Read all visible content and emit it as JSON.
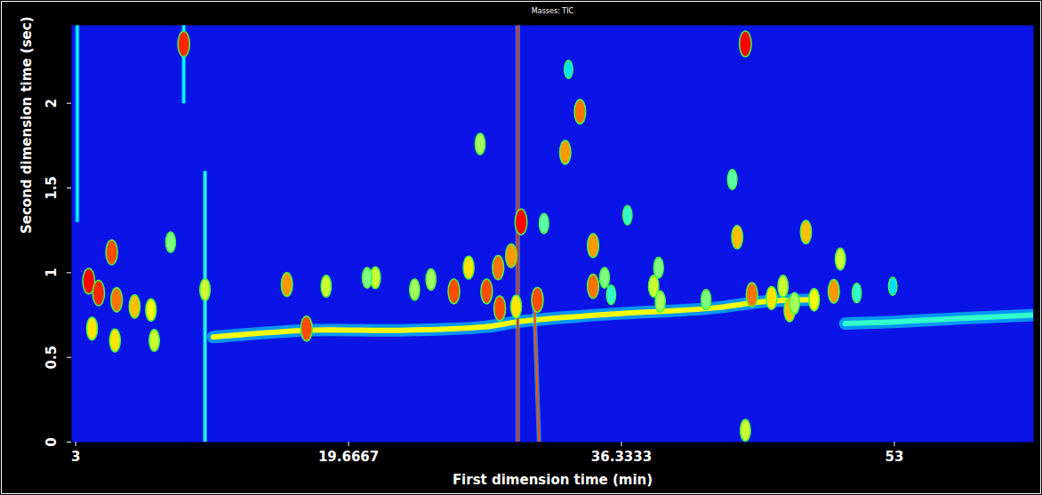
{
  "chart_data": {
    "type": "heatmap",
    "title": "Masses: TIC",
    "x_label": "First dimension time (min)",
    "y_label": "Second dimension time (sec)",
    "xlim": [
      2.75,
      61.5
    ],
    "ylim": [
      0,
      2.46
    ],
    "xticks": [
      3,
      19.6667,
      36.3333,
      53
    ],
    "yticks": [
      0,
      0.5,
      1,
      1.5,
      2
    ],
    "zlim": [
      0,
      100
    ],
    "peaks": {
      "x": [
        3.8,
        4.4,
        5.5,
        6.6,
        7.6,
        5.2,
        4.0,
        5.4,
        7.8,
        8.8,
        9.6,
        10.9,
        15.9,
        17.1,
        18.3,
        20.8,
        21.3,
        23.7,
        24.7,
        26.1,
        27.0,
        27.7,
        28.1,
        28.8,
        28.9,
        29.6,
        29.9,
        30.2,
        31.2,
        31.6,
        32.9,
        33.1,
        33.8,
        34.6,
        34.6,
        35.3,
        35.7,
        36.7,
        38.3,
        38.6,
        38.7,
        41.5,
        43.1,
        43.4,
        43.9,
        43.9,
        44.3,
        45.5,
        46.2,
        46.6,
        46.9,
        47.6,
        48.1,
        49.3,
        49.7,
        50.7,
        52.9
      ],
      "y": [
        0.95,
        0.88,
        0.84,
        0.8,
        0.78,
        1.12,
        0.67,
        0.6,
        0.6,
        1.18,
        2.35,
        0.9,
        0.93,
        0.67,
        0.92,
        0.97,
        0.97,
        0.9,
        0.96,
        0.89,
        1.03,
        1.76,
        0.89,
        1.03,
        0.79,
        1.1,
        0.8,
        1.3,
        0.84,
        1.29,
        1.71,
        2.2,
        1.95,
        0.92,
        1.16,
        0.97,
        0.87,
        1.34,
        0.92,
        1.03,
        0.83,
        0.84,
        1.55,
        1.21,
        2.35,
        0.07,
        0.87,
        0.85,
        0.92,
        0.78,
        0.82,
        1.24,
        0.84,
        0.89,
        1.08,
        0.88,
        0.92
      ],
      "values": [
        100,
        95,
        85,
        75,
        65,
        90,
        70,
        70,
        60,
        50,
        95,
        60,
        80,
        90,
        60,
        50,
        60,
        55,
        55,
        90,
        70,
        55,
        90,
        85,
        90,
        80,
        70,
        100,
        90,
        45,
        80,
        30,
        85,
        85,
        80,
        50,
        40,
        40,
        60,
        50,
        55,
        50,
        45,
        75,
        100,
        60,
        85,
        70,
        60,
        75,
        55,
        75,
        65,
        80,
        60,
        40,
        30
      ]
    },
    "band": [
      {
        "x": [
          11.4,
          17.1,
          22.8,
          28,
          30,
          33.4,
          36.4,
          41.8,
          45.1,
          48
        ],
        "y": [
          0.62,
          0.66,
          0.66,
          0.68,
          0.71,
          0.74,
          0.76,
          0.79,
          0.83,
          0.84
        ],
        "value": 65
      },
      {
        "x": [
          50,
          53,
          57,
          61.5
        ],
        "y": [
          0.7,
          0.71,
          0.73,
          0.75
        ],
        "value": 40
      }
    ],
    "streaks": {
      "x1": [
        3.1,
        10.9,
        30.0,
        31.0,
        9.6
      ],
      "x2": [
        3.1,
        10.9,
        30.0,
        31.3,
        9.6
      ],
      "y1": [
        1.3,
        0,
        0,
        0.85,
        2.0
      ],
      "y2": [
        2.46,
        1.6,
        2.46,
        0,
        2.46
      ],
      "values": [
        35,
        40,
        95,
        90,
        35
      ]
    }
  }
}
